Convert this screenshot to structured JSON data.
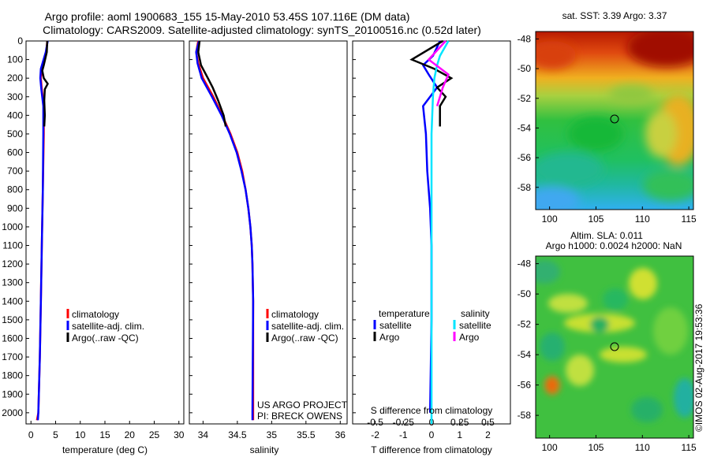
{
  "title_line1": "Argo profile: aoml 1900683_155 15-May-2010 53.45S 107.116E (DM data)",
  "title_line2": "Climatology: CARS2009. Satellite-adjusted climatology: synTS_20100516.nc (0.52d later)",
  "watermark": "©IMOS 02-Aug-2017 19:53:36",
  "colors": {
    "climatology": "#ff0000",
    "satellite_clim": "#0000ff",
    "argo": "#000000",
    "sat_salinity": "#00e5ff",
    "argo_salinity": "#ff00ff"
  },
  "chart_data": [
    {
      "type": "line",
      "panel": "temperature",
      "xlabel": "temperature (deg C)",
      "ylabel": "",
      "xlim": [
        -1,
        31
      ],
      "ylim": [
        2060,
        0
      ],
      "xticks": [
        "0",
        "5",
        "10",
        "15",
        "20",
        "25",
        "30"
      ],
      "yticks": [
        "0",
        "100",
        "200",
        "300",
        "400",
        "500",
        "600",
        "700",
        "800",
        "900",
        "1000",
        "1100",
        "1200",
        "1300",
        "1400",
        "1500",
        "1600",
        "1700",
        "1800",
        "1900",
        "2000"
      ],
      "legend": [
        "climatology",
        "satellite-adj. clim.",
        "Argo(..raw -QC)"
      ],
      "series": [
        {
          "name": "climatology",
          "color": "#ff0000",
          "points": [
            [
              3.3,
              0
            ],
            [
              3.1,
              60
            ],
            [
              2.2,
              150
            ],
            [
              2.0,
              200
            ],
            [
              2.2,
              260
            ],
            [
              2.6,
              350
            ],
            [
              2.6,
              500
            ],
            [
              2.4,
              800
            ],
            [
              2.2,
              1100
            ],
            [
              2.0,
              1400
            ],
            [
              1.8,
              1700
            ],
            [
              1.5,
              2000
            ],
            [
              1.2,
              2040
            ]
          ]
        },
        {
          "name": "satellite-adj. clim.",
          "color": "#0000ff",
          "points": [
            [
              3.4,
              0
            ],
            [
              3.0,
              60
            ],
            [
              2.0,
              150
            ],
            [
              1.9,
              200
            ],
            [
              2.1,
              260
            ],
            [
              2.5,
              350
            ],
            [
              2.5,
              500
            ],
            [
              2.4,
              800
            ],
            [
              2.2,
              1100
            ],
            [
              2.0,
              1400
            ],
            [
              1.8,
              1700
            ],
            [
              1.5,
              2000
            ],
            [
              1.4,
              2040
            ]
          ]
        },
        {
          "name": "Argo(..raw -QC)",
          "color": "#000000",
          "points": [
            [
              3.3,
              0
            ],
            [
              3.2,
              60
            ],
            [
              2.6,
              130
            ],
            [
              2.3,
              160
            ],
            [
              2.6,
              200
            ],
            [
              3.4,
              230
            ],
            [
              2.8,
              260
            ],
            [
              2.7,
              320
            ],
            [
              2.8,
              400
            ],
            [
              2.7,
              460
            ]
          ]
        }
      ]
    },
    {
      "type": "line",
      "panel": "salinity",
      "xlabel": "salinity",
      "ylabel": "",
      "xlim": [
        33.8,
        36.1
      ],
      "ylim": [
        2060,
        0
      ],
      "xticks": [
        "34",
        "34.5",
        "35",
        "35.5",
        "36"
      ],
      "legend": [
        "climatology",
        "satellite-adj. clim.",
        "Argo(..raw -QC)"
      ],
      "annotation": [
        "US ARGO PROJECT",
        "PI: BRECK OWENS"
      ],
      "series": [
        {
          "name": "climatology",
          "color": "#ff0000",
          "points": [
            [
              33.93,
              0
            ],
            [
              33.9,
              60
            ],
            [
              33.93,
              120
            ],
            [
              34.0,
              200
            ],
            [
              34.15,
              300
            ],
            [
              34.28,
              400
            ],
            [
              34.4,
              500
            ],
            [
              34.5,
              600
            ],
            [
              34.57,
              700
            ],
            [
              34.62,
              800
            ],
            [
              34.66,
              900
            ],
            [
              34.69,
              1000
            ],
            [
              34.71,
              1100
            ],
            [
              34.72,
              1200
            ],
            [
              34.73,
              1400
            ],
            [
              34.73,
              2000
            ],
            [
              34.73,
              2040
            ]
          ]
        },
        {
          "name": "satellite-adj. clim.",
          "color": "#0000ff",
          "points": [
            [
              33.94,
              0
            ],
            [
              33.9,
              60
            ],
            [
              33.92,
              120
            ],
            [
              33.98,
              200
            ],
            [
              34.13,
              300
            ],
            [
              34.27,
              400
            ],
            [
              34.39,
              500
            ],
            [
              34.49,
              600
            ],
            [
              34.56,
              700
            ],
            [
              34.62,
              800
            ],
            [
              34.66,
              900
            ],
            [
              34.69,
              1000
            ],
            [
              34.71,
              1100
            ],
            [
              34.72,
              1200
            ],
            [
              34.73,
              1400
            ],
            [
              34.72,
              2000
            ],
            [
              34.72,
              2040
            ]
          ]
        },
        {
          "name": "Argo(..raw -QC)",
          "color": "#000000",
          "points": [
            [
              33.95,
              0
            ],
            [
              33.93,
              60
            ],
            [
              33.97,
              130
            ],
            [
              34.07,
              200
            ],
            [
              34.14,
              250
            ],
            [
              34.22,
              320
            ],
            [
              34.3,
              400
            ],
            [
              34.33,
              460
            ]
          ]
        }
      ]
    },
    {
      "type": "line",
      "panel": "difference",
      "xlabel": "T difference from climatology",
      "xlabel_top": "S difference from climatology",
      "xlim": [
        -2.8,
        2.8
      ],
      "ylim": [
        2060,
        0
      ],
      "xticks": [
        "-2",
        "-1",
        "0",
        "1",
        "2"
      ],
      "xticks_top": [
        "-0.5",
        "-0.25",
        "0",
        "0.25",
        "0.5"
      ],
      "legend_titles": [
        "temperature",
        "salinity"
      ],
      "legend": [
        "satellite",
        "Argo",
        "satellite",
        "Argo"
      ],
      "series": [
        {
          "name": "satellite",
          "color": "#0000ff",
          "points": [
            [
              0.3,
              0
            ],
            [
              0.05,
              80
            ],
            [
              -0.3,
              130
            ],
            [
              -0.1,
              180
            ],
            [
              0.2,
              250
            ],
            [
              -0.3,
              350
            ],
            [
              -0.2,
              500
            ],
            [
              -0.15,
              700
            ],
            [
              -0.05,
              900
            ],
            [
              0.0,
              1100
            ],
            [
              0.0,
              1500
            ],
            [
              -0.05,
              2000
            ]
          ]
        },
        {
          "name": "Argo",
          "color": "#000000",
          "points": [
            [
              0.4,
              0
            ],
            [
              -0.7,
              100
            ],
            [
              0.1,
              150
            ],
            [
              0.7,
              200
            ],
            [
              0.2,
              250
            ],
            [
              0.5,
              300
            ],
            [
              0.3,
              350
            ],
            [
              0.3,
              460
            ]
          ]
        },
        {
          "name": "satellite",
          "color": "#00e5ff",
          "points": [
            [
              0.6,
              0
            ],
            [
              0.3,
              80
            ],
            [
              0.2,
              130
            ],
            [
              0.1,
              200
            ],
            [
              0.05,
              300
            ],
            [
              0.0,
              500
            ],
            [
              0.0,
              1000
            ],
            [
              0.0,
              2060
            ]
          ]
        },
        {
          "name": "Argo",
          "color": "#ff00ff",
          "points": [
            [
              0.5,
              0
            ],
            [
              -0.1,
              100
            ],
            [
              0.6,
              180
            ],
            [
              0.4,
              250
            ],
            [
              0.2,
              350
            ]
          ]
        }
      ]
    },
    {
      "type": "heatmap",
      "panel": "sst_map",
      "title": "sat. SST: 3.39 Argo: 3.37",
      "xlim": [
        98.5,
        115.5
      ],
      "ylim": [
        -59.5,
        -47.5
      ],
      "xticks": [
        "100",
        "105",
        "110",
        "115"
      ],
      "yticks": [
        "-48",
        "-50",
        "-52",
        "-54",
        "-56",
        "-58"
      ],
      "marker": [
        107.116,
        -53.45
      ]
    },
    {
      "type": "heatmap",
      "panel": "sla_map",
      "title_line1": "Altim. SLA: 0.011",
      "title_line2": "Argo h1000: 0.0024 h2000: NaN",
      "xlim": [
        98.5,
        115.5
      ],
      "ylim": [
        -59.5,
        -47.5
      ],
      "xticks": [
        "100",
        "105",
        "110",
        "115"
      ],
      "yticks": [
        "-48",
        "-50",
        "-52",
        "-54",
        "-56",
        "-58"
      ],
      "marker": [
        107.116,
        -53.45
      ]
    }
  ]
}
